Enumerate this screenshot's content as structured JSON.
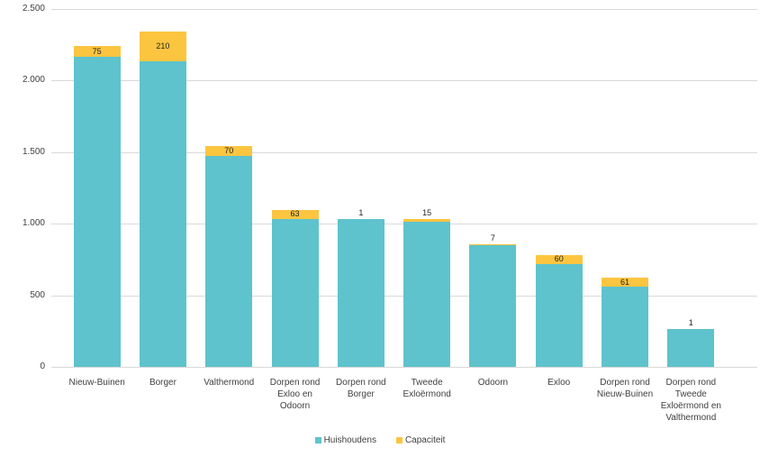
{
  "window": {
    "background": "#FFFFFF"
  },
  "chart_data": {
    "type": "bar",
    "stacked": true,
    "orientation": "vertical",
    "title": "",
    "categories": [
      "Nieuw-Buinen",
      "Borger",
      "Valthermond",
      "Dorpen rond Exloo en Odoorn",
      "Dorpen rond Borger",
      "Tweede Exloërmond",
      "Odoorn",
      "Exloo",
      "Dorpen rond Nieuw-Buinen",
      "Dorpen rond Tweede Exloërmond en Valthermond"
    ],
    "series": [
      {
        "name": "Huishoudens",
        "color": "#5EC3CC",
        "values": [
          2165,
          2135,
          1475,
          1035,
          1030,
          1015,
          850,
          720,
          560,
          265
        ]
      },
      {
        "name": "Capaciteit",
        "color": "#FBC540",
        "values": [
          75,
          210,
          70,
          63,
          1,
          15,
          7,
          60,
          61,
          1
        ]
      }
    ],
    "bar_value_labels": [
      "75",
      "210",
      "70",
      "63",
      "1",
      "15",
      "7",
      "60",
      "61",
      "1"
    ],
    "y_axis": {
      "min": 0,
      "max": 2500,
      "interval": 500,
      "tick_labels_top_to_bottom": [
        "2.500",
        "2.000",
        "1.500",
        "1.000",
        "500",
        "0"
      ]
    },
    "grid": true,
    "gridline_color": "#D9D9D9",
    "axis_text_color": "#404040",
    "legend": {
      "position": "bottom",
      "items": [
        {
          "label": "Huishoudens",
          "color": "#5EC3CC"
        },
        {
          "label": "Capaciteit",
          "color": "#FBC540"
        }
      ]
    }
  }
}
